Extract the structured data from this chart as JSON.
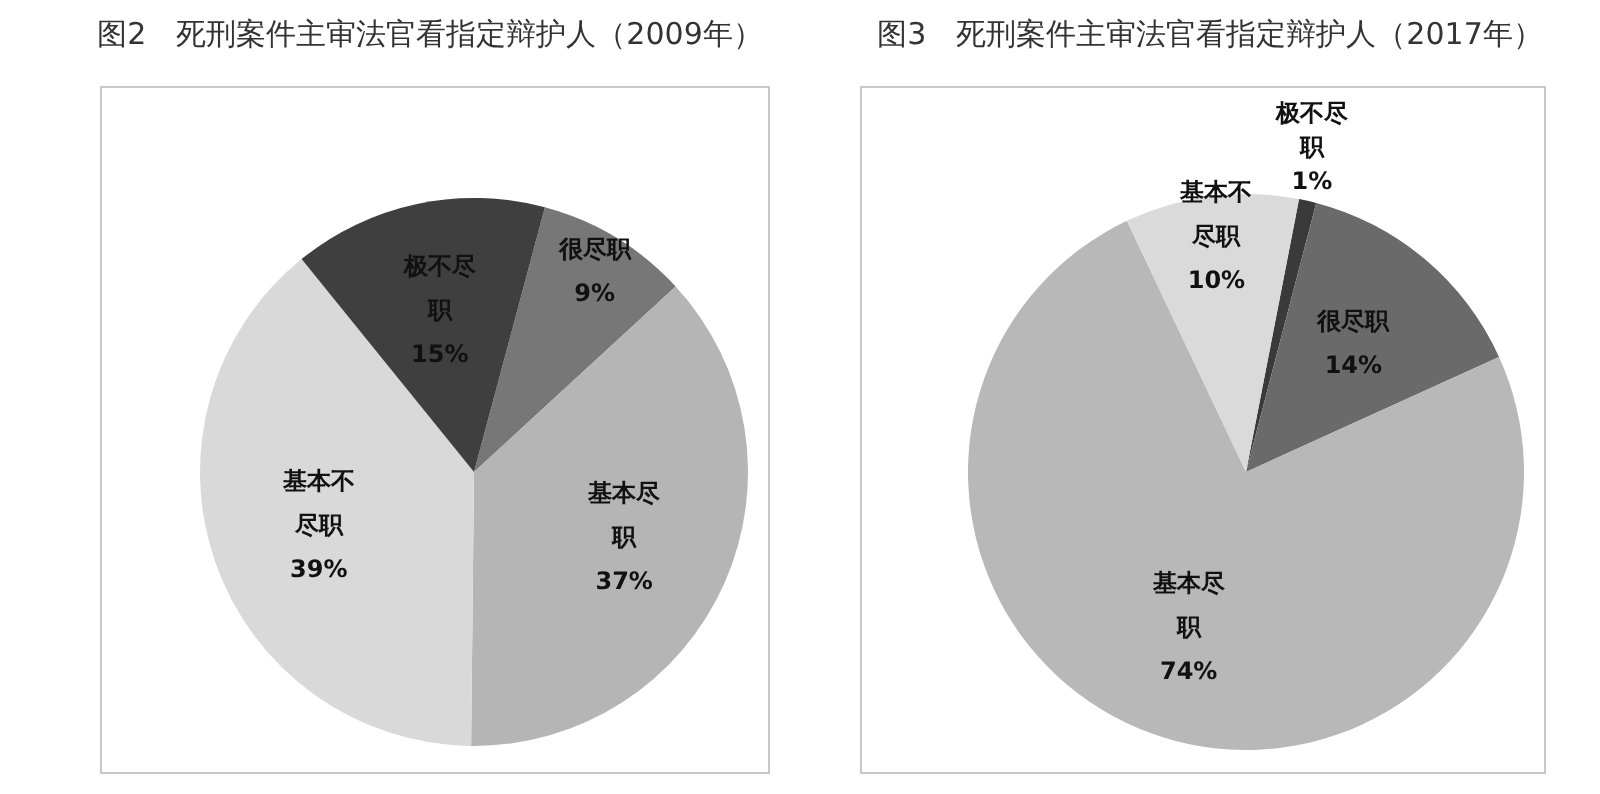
{
  "chart_data": [
    {
      "type": "pie",
      "title": "图2　死刑案件主审法官看指定辩护人（2009年）",
      "categories": [
        "很尽职",
        "基本尽职",
        "基本不尽职",
        "极不尽职"
      ],
      "values": [
        9,
        37,
        39,
        15
      ],
      "colors": [
        "#777777",
        "#b5b5b5",
        "#d9d9d9",
        "#3f3f3f"
      ],
      "value_labels": [
        "9%",
        "37%",
        "39%",
        "15%"
      ],
      "legend": false
    },
    {
      "type": "pie",
      "title": "图3　死刑案件主审法官看指定辩护人（2017年）",
      "categories": [
        "极不尽职",
        "很尽职",
        "基本尽职",
        "基本不尽职"
      ],
      "values": [
        1,
        14,
        74,
        10
      ],
      "colors": [
        "#3a3a3a",
        "#6a6a6a",
        "#b8b8b8",
        "#dadada"
      ],
      "value_labels": [
        "1%",
        "14%",
        "74%",
        "10%"
      ],
      "legend": false
    }
  ]
}
